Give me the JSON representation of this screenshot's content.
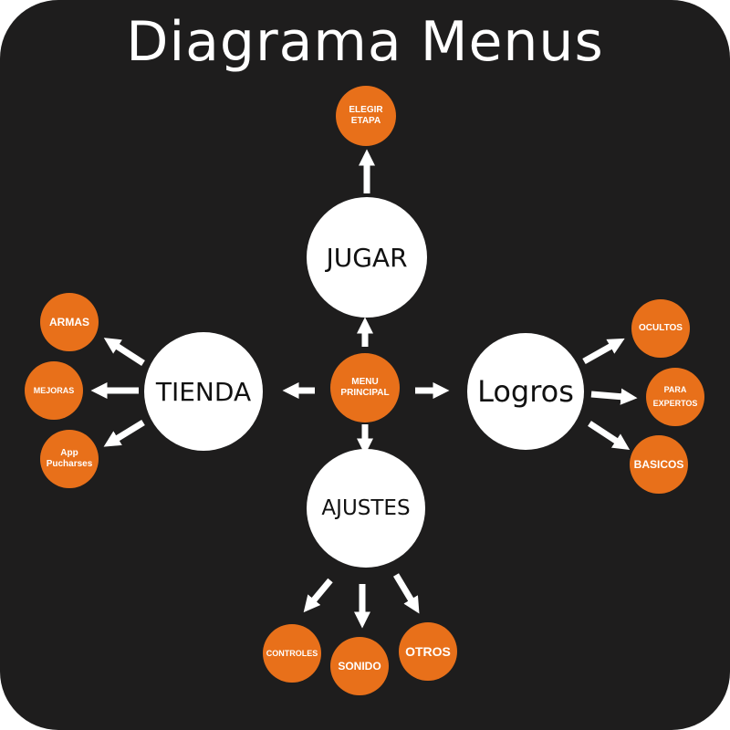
{
  "title": "Diagrama Menus",
  "colors": {
    "background": "#1e1d1d",
    "main_node": "#ffffff",
    "sub_node": "#e8701a",
    "arrow": "#ffffff"
  },
  "center": {
    "label": "MENU\nPRINCIPAL"
  },
  "main_menus": {
    "jugar": {
      "label": "JUGAR",
      "children": [
        "ELEGIR\nETAPA"
      ]
    },
    "tienda": {
      "label": "TIENDA",
      "children": [
        "ARMAS",
        "MEJORAS",
        "App\nPucharses"
      ]
    },
    "logros": {
      "label": "Logros",
      "children": [
        "OCULTOS",
        "PARA\nEXPERTOS",
        "BASICOS"
      ]
    },
    "ajustes": {
      "label": "AJUSTES",
      "children": [
        "CONTROLES",
        "SONIDO",
        "OTROS"
      ]
    }
  }
}
